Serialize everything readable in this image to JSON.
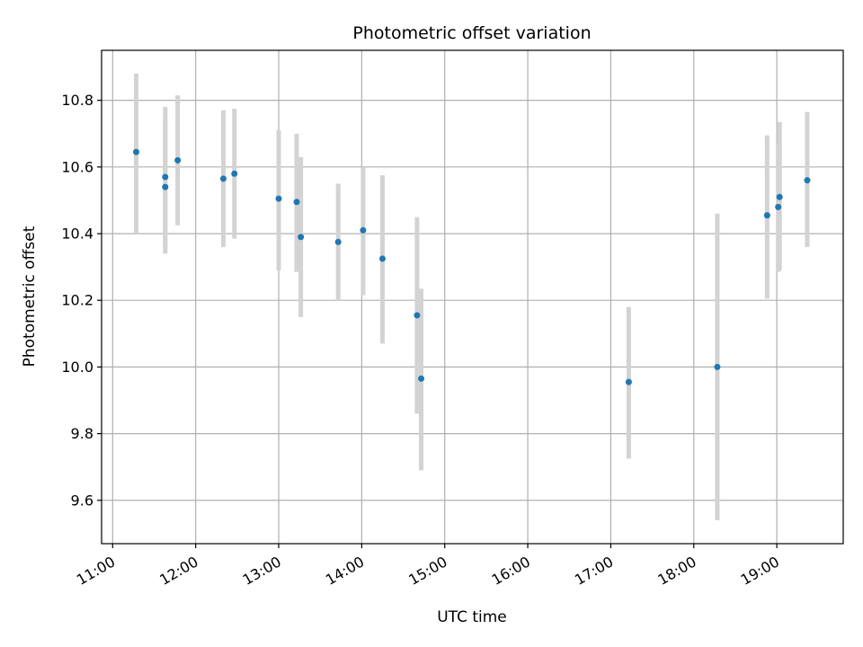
{
  "chart_data": {
    "type": "scatter",
    "title": "Photometric offset variation",
    "xlabel": "UTC time",
    "ylabel": "Photometric offset",
    "grid": true,
    "xlim": [
      "10:52",
      "19:48"
    ],
    "ylim": [
      9.47,
      10.95
    ],
    "x_ticks": [
      "11:00",
      "12:00",
      "13:00",
      "14:00",
      "15:00",
      "16:00",
      "17:00",
      "18:00",
      "19:00"
    ],
    "y_ticks": [
      9.6,
      9.8,
      10.0,
      10.2,
      10.4,
      10.6,
      10.8
    ],
    "y_tick_labels": [
      "9.6",
      "9.8",
      "10.0",
      "10.2",
      "10.4",
      "10.6",
      "10.8"
    ],
    "marker_color": "#1f77b4",
    "errorbar_color": "#d3d3d3",
    "points": [
      {
        "x": "11:17",
        "y": 10.645,
        "ylow": 10.4,
        "yhigh": 10.88
      },
      {
        "x": "11:38",
        "y": 10.57,
        "ylow": 10.36,
        "yhigh": 10.78
      },
      {
        "x": "11:38",
        "y": 10.54,
        "ylow": 10.34,
        "yhigh": 10.74
      },
      {
        "x": "11:47",
        "y": 10.62,
        "ylow": 10.425,
        "yhigh": 10.815
      },
      {
        "x": "12:20",
        "y": 10.565,
        "ylow": 10.36,
        "yhigh": 10.77
      },
      {
        "x": "12:28",
        "y": 10.58,
        "ylow": 10.385,
        "yhigh": 10.775
      },
      {
        "x": "13:00",
        "y": 10.505,
        "ylow": 10.29,
        "yhigh": 10.71
      },
      {
        "x": "13:13",
        "y": 10.495,
        "ylow": 10.285,
        "yhigh": 10.7
      },
      {
        "x": "13:16",
        "y": 10.39,
        "ylow": 10.15,
        "yhigh": 10.63
      },
      {
        "x": "13:43",
        "y": 10.375,
        "ylow": 10.2,
        "yhigh": 10.55
      },
      {
        "x": "14:01",
        "y": 10.41,
        "ylow": 10.215,
        "yhigh": 10.6
      },
      {
        "x": "14:15",
        "y": 10.325,
        "ylow": 10.07,
        "yhigh": 10.575
      },
      {
        "x": "14:40",
        "y": 10.155,
        "ylow": 9.86,
        "yhigh": 10.45
      },
      {
        "x": "14:43",
        "y": 9.965,
        "ylow": 9.69,
        "yhigh": 10.235
      },
      {
        "x": "17:13",
        "y": 9.955,
        "ylow": 9.725,
        "yhigh": 10.18
      },
      {
        "x": "18:17",
        "y": 10.0,
        "ylow": 9.54,
        "yhigh": 10.46
      },
      {
        "x": "18:53",
        "y": 10.455,
        "ylow": 10.205,
        "yhigh": 10.695
      },
      {
        "x": "19:01",
        "y": 10.48,
        "ylow": 10.285,
        "yhigh": 10.67
      },
      {
        "x": "19:02",
        "y": 10.51,
        "ylow": 10.29,
        "yhigh": 10.735
      },
      {
        "x": "19:22",
        "y": 10.56,
        "ylow": 10.36,
        "yhigh": 10.765
      }
    ]
  }
}
